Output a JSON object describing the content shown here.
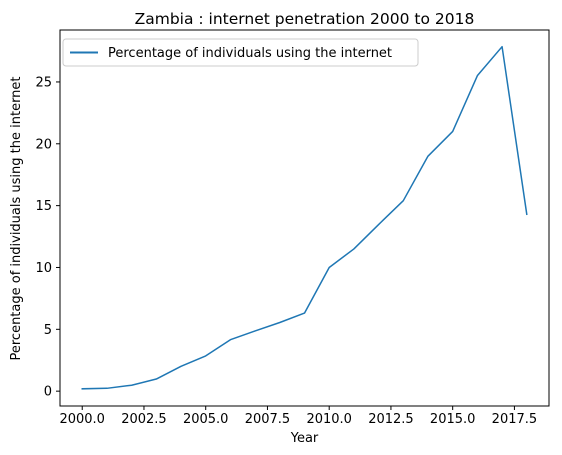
{
  "chart_data": {
    "type": "line",
    "title": "Zambia : internet penetration 2000 to 2018",
    "xlabel": "Year",
    "ylabel": "Percentage of individuals using the internet",
    "xlim": [
      1999.1,
      2018.9
    ],
    "ylim": [
      -1.2,
      29.2
    ],
    "xticks": [
      "2000.0",
      "2002.5",
      "2005.0",
      "2007.5",
      "2010.0",
      "2012.5",
      "2015.0",
      "2017.5"
    ],
    "yticks": [
      "0",
      "5",
      "10",
      "15",
      "20",
      "25"
    ],
    "grid": false,
    "legend_position": "upper-left",
    "color": "#1f77b4",
    "series": [
      {
        "name": "Percentage of individuals using the internet",
        "x": [
          2000,
          2001,
          2002,
          2003,
          2004,
          2005,
          2006,
          2007,
          2008,
          2009,
          2010,
          2011,
          2012,
          2013,
          2014,
          2015,
          2016,
          2017,
          2018
        ],
        "values": [
          0.19,
          0.23,
          0.48,
          0.98,
          2.01,
          2.85,
          4.16,
          4.87,
          5.55,
          6.31,
          10.0,
          11.5,
          13.47,
          15.4,
          19.0,
          21.0,
          25.51,
          27.85,
          14.3
        ]
      }
    ]
  }
}
